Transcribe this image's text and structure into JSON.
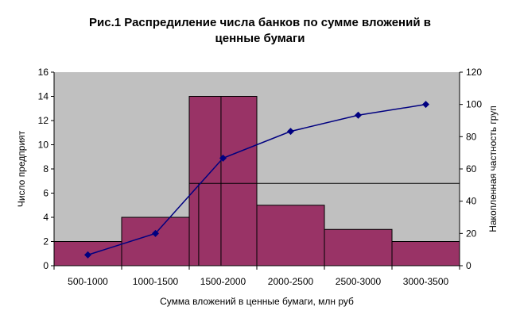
{
  "chart_data": {
    "type": "bar",
    "title_line1": "Рис.1 Распредиление числа банков по сумме вложений в",
    "title_line2": "ценные бумаги",
    "xlabel": "Сумма вложений в ценные бумаги, млн руб",
    "ylabel_left": "Число предприят",
    "ylabel_right": "Накопленная частность груп",
    "categories": [
      "500-1000",
      "1000-1500",
      "1500-2000",
      "2000-2500",
      "2500-3000",
      "3000-3500"
    ],
    "series": [
      {
        "kind": "bar",
        "axis": "left",
        "values": [
          2,
          4,
          14,
          5,
          3,
          2
        ]
      },
      {
        "kind": "line",
        "axis": "right",
        "values": [
          6.7,
          20,
          66.7,
          83.3,
          93.3,
          100
        ]
      }
    ],
    "ylim_left": [
      0,
      16
    ],
    "yticks_left": [
      0,
      2,
      4,
      6,
      8,
      10,
      12,
      14,
      16
    ],
    "ylim_right": [
      0,
      120
    ],
    "yticks_right": [
      0,
      20,
      40,
      60,
      80,
      100,
      120
    ],
    "reference_line_right": 51,
    "grid": false,
    "legend": "none",
    "colors": {
      "plot_background": "#c0c0c0",
      "bar_fill": "#993366",
      "line": "#000080",
      "marker": "#000080"
    }
  }
}
